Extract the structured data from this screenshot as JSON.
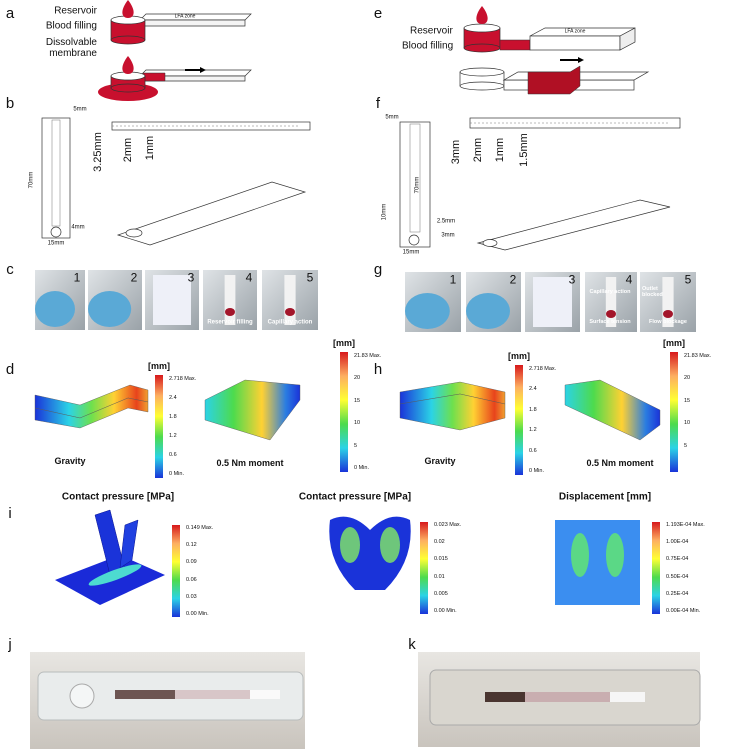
{
  "labels": [
    "a",
    "b",
    "c",
    "d",
    "e",
    "f",
    "g",
    "h",
    "i",
    "j",
    "k"
  ],
  "a": {
    "reservoir": "Reservoir",
    "blood_filling": "Blood filling",
    "membrane": "Dissolvable membrane",
    "zone": "LFA zone"
  },
  "b": {
    "dims": [
      "5mm",
      "70mm",
      "4mm",
      "15mm",
      "3.25mm",
      "2mm",
      "1mm"
    ]
  },
  "c": {
    "steps": [
      "1",
      "2",
      "3",
      "4",
      "5"
    ],
    "captions": [
      "Reservoir filling",
      "Capillary action"
    ]
  },
  "d": {
    "plots": [
      {
        "unit": "[mm]",
        "scale": [
          "2.718 Max.",
          "2.4",
          "1.8",
          "1.2",
          "0.6",
          "0 Min."
        ],
        "caption": "Gravity"
      },
      {
        "unit": "[mm]",
        "scale": [
          "21.83 Max.",
          "20",
          "15",
          "10",
          "5",
          "0 Min."
        ],
        "caption": "0.5 Nm moment"
      }
    ]
  },
  "e": {
    "reservoir": "Reservoir",
    "blood_filling": "Blood filling",
    "zone": "LFA zone"
  },
  "f": {
    "dims": [
      "5mm",
      "70mm",
      "10mm",
      "2.5mm",
      "3mm",
      "15mm",
      "3mm",
      "2mm",
      "1mm",
      "1.5mm"
    ]
  },
  "g": {
    "steps": [
      "1",
      "2",
      "3",
      "4",
      "5"
    ],
    "notes": [
      "Capillary action",
      "Outlet blocked",
      "Surface tension",
      "Flow blockage"
    ]
  },
  "h": {
    "plots": [
      {
        "unit": "[mm]",
        "scale": [
          "2.718 Max.",
          "2.4",
          "1.8",
          "1.2",
          "0.6",
          "0 Min."
        ],
        "caption": "Gravity"
      },
      {
        "unit": "[mm]",
        "scale": [
          "21.83 Max.",
          "20",
          "15",
          "10",
          "5"
        ],
        "caption": "0.5 Nm moment"
      }
    ]
  },
  "i": {
    "plots": [
      {
        "title": "Contact pressure [MPa]",
        "scale": [
          "0.149 Max.",
          "0.12",
          "0.09",
          "0.06",
          "0.03",
          "0.00 Min."
        ]
      },
      {
        "title": "Contact pressure [MPa]",
        "scale": [
          "0.023 Max.",
          "0.02",
          "0.015",
          "0.01",
          "0.005",
          "0.00 Min."
        ]
      },
      {
        "title": "Displacement [mm]",
        "scale": [
          "1.193E-04 Max.",
          "1.00E-04",
          "0.75E-04",
          "0.50E-04",
          "0.25E-04",
          "0.00E-04 Min."
        ]
      }
    ]
  }
}
